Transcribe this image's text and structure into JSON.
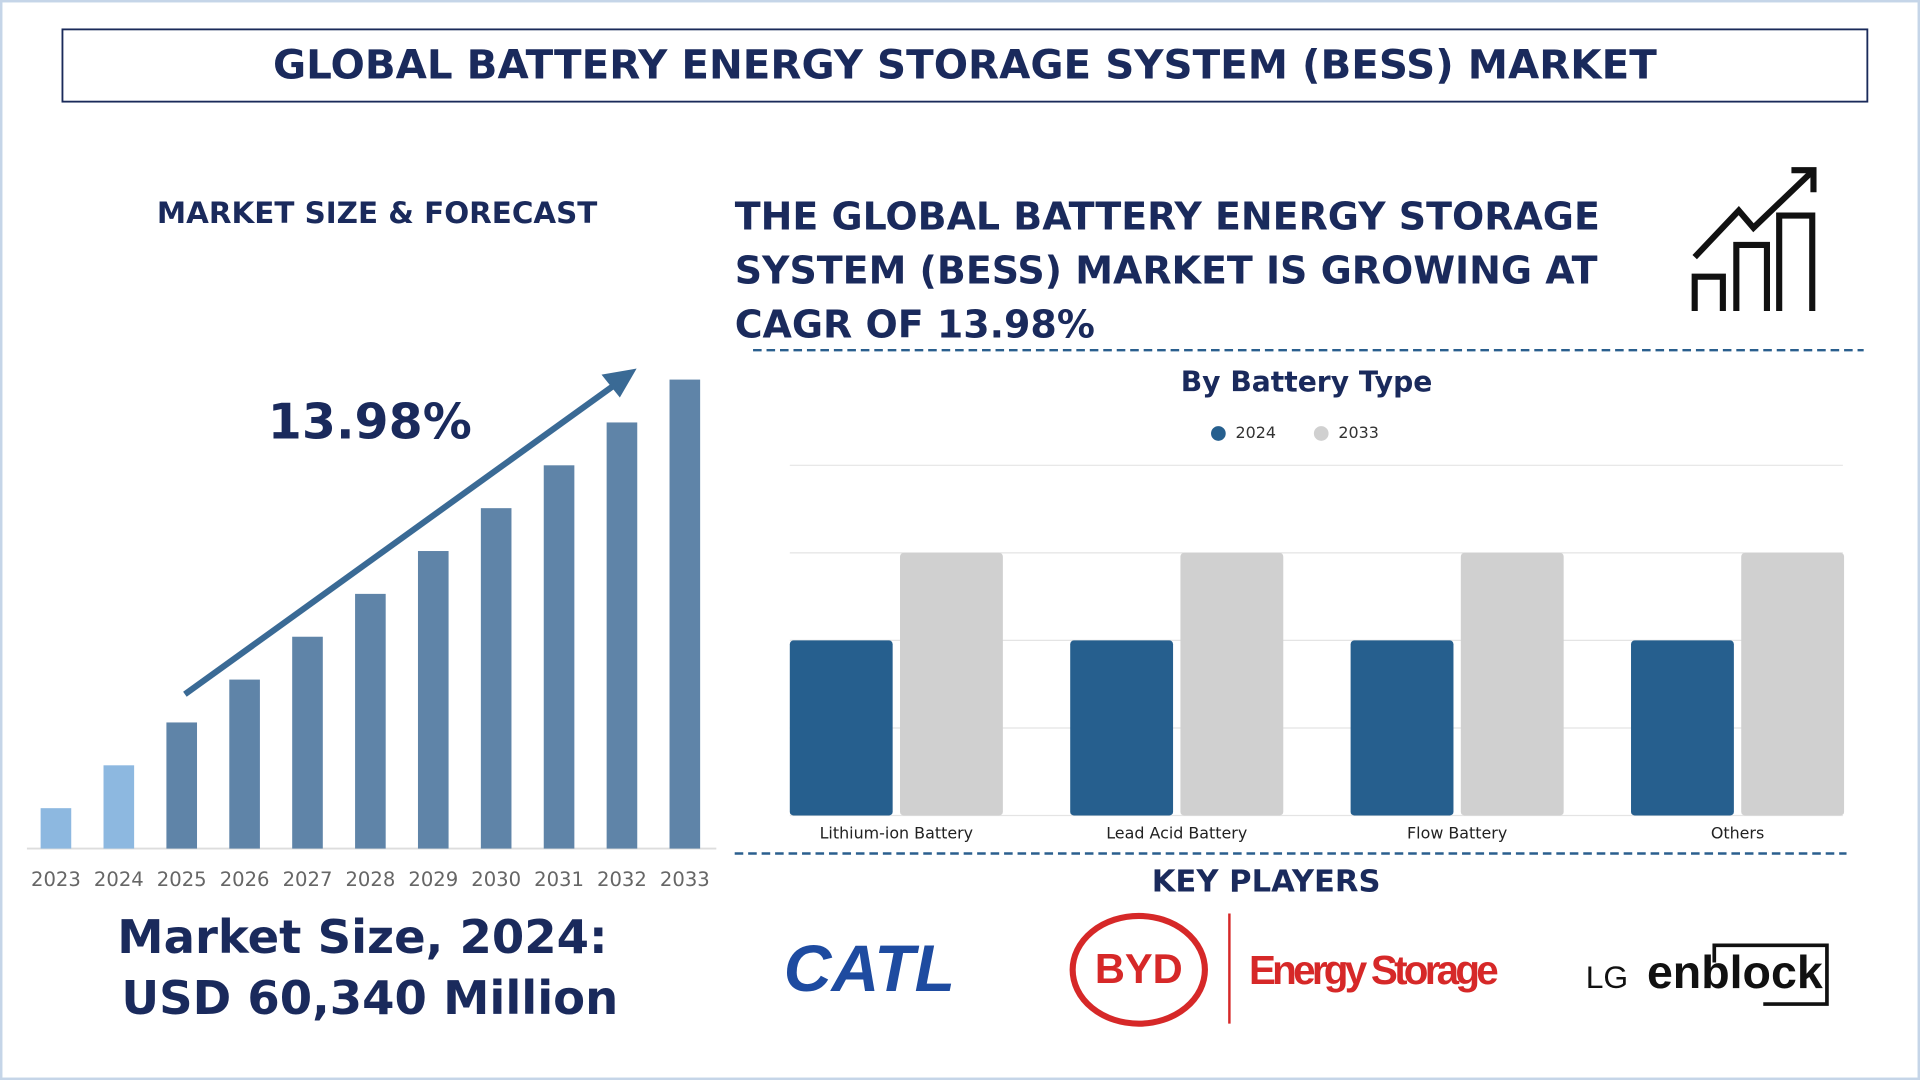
{
  "header": {
    "title": "GLOBAL BATTERY ENERGY STORAGE SYSTEM (BESS) MARKET"
  },
  "cagr_statement": {
    "lines": [
      "THE GLOBAL BATTERY ENERGY STORAGE",
      "SYSTEM (BESS) MARKET IS GROWING AT",
      "CAGR OF 13.98%"
    ]
  },
  "market_size": {
    "label": "Market Size, 2024:",
    "value": "USD 60,340 Million"
  },
  "key_players": {
    "title": "KEY PLAYERS",
    "catl": "CATL",
    "byd": "BYD",
    "byd_tagline": "Energy Storage",
    "lg_brand": "LG",
    "lg_product": "enblock"
  },
  "chart_data": [
    {
      "type": "bar",
      "title": "MARKET SIZE & FORECAST",
      "annotation": "13.98%",
      "categories": [
        "2023",
        "2024",
        "2025",
        "2026",
        "2027",
        "2028",
        "2029",
        "2030",
        "2031",
        "2032",
        "2033"
      ],
      "values": [
        33,
        68,
        103,
        138,
        173,
        208,
        243,
        278,
        313,
        348,
        383
      ],
      "colors": [
        "#8db8e0",
        "#8db8e0",
        "#5f84a8",
        "#5f84a8",
        "#5f84a8",
        "#5f84a8",
        "#5f84a8",
        "#5f84a8",
        "#5f84a8",
        "#5f84a8",
        "#5f84a8"
      ],
      "ylim": [
        0,
        400
      ]
    },
    {
      "type": "bar",
      "title": "By Battery Type",
      "categories": [
        "Lithium-ion Battery",
        "Lead Acid Battery",
        "Flow Battery",
        "Others"
      ],
      "series": [
        {
          "name": "2024",
          "color": "#265f8e",
          "values": [
            2,
            2,
            2,
            2
          ]
        },
        {
          "name": "2033",
          "color": "#d0d0d0",
          "values": [
            3,
            3,
            3,
            3
          ]
        }
      ],
      "ylim": [
        0,
        4
      ],
      "yticks": [
        0,
        1,
        2,
        3,
        4
      ],
      "grid": true,
      "legend": "top"
    }
  ]
}
